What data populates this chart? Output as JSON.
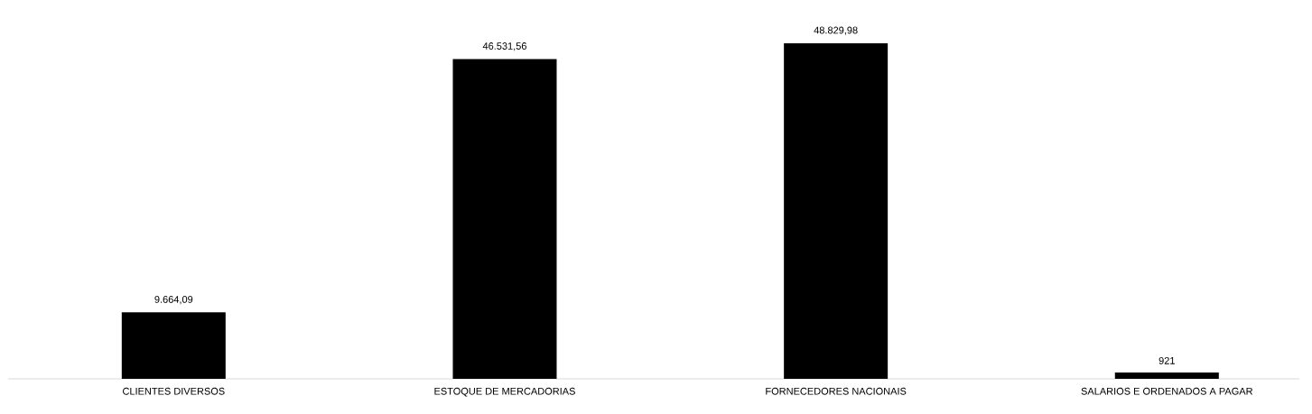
{
  "chart_data": {
    "type": "bar",
    "categories": [
      "CLIENTES DIVERSOS",
      "ESTOQUE DE MERCADORIAS",
      "FORNECEDORES NACIONAIS",
      "SALARIOS E ORDENADOS A PAGAR"
    ],
    "values": [
      9664.09,
      46531.56,
      48829.98,
      921
    ],
    "value_labels": [
      "9.664,09",
      "46.531,56",
      "48.829,98",
      "921"
    ],
    "color": "#000000"
  }
}
